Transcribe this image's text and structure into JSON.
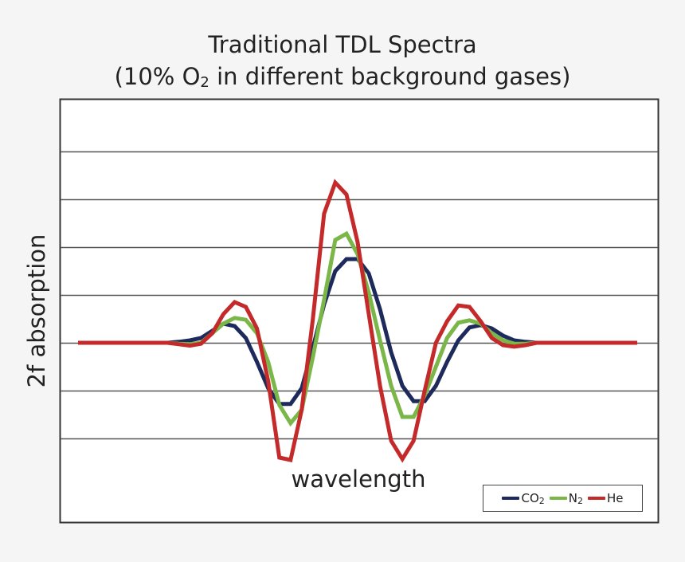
{
  "title": {
    "line1": "Traditional TDL Spectra",
    "line2_prefix": "(10% O",
    "line2_sub": "2",
    "line2_suffix": " in different background gases)"
  },
  "axes": {
    "xlabel": "wavelength",
    "ylabel": "2f absorption"
  },
  "legend": [
    {
      "label": "CO",
      "sub": "2",
      "color": "#1f2a5c"
    },
    {
      "label": "N",
      "sub": "2",
      "color": "#7ab648"
    },
    {
      "label": "He",
      "sub": "",
      "color": "#c42a2a"
    }
  ],
  "chart_data": {
    "type": "line",
    "title": "Traditional TDL Spectra (10% O2 in different background gases)",
    "xlabel": "wavelength",
    "ylabel": "2f absorption",
    "grid": "horizontal",
    "x_tick_labels": false,
    "y_tick_labels": false,
    "ylim": [
      -4,
      4.7
    ],
    "legend_position": "lower right, inside plot",
    "x": [
      0,
      1,
      2,
      3,
      4,
      5,
      6,
      7,
      8,
      9,
      10,
      11,
      12,
      13,
      14,
      15,
      16,
      17,
      18,
      19,
      20,
      21,
      22,
      23,
      24,
      25,
      26,
      27,
      28,
      29,
      30,
      31,
      32,
      33,
      34,
      35,
      36,
      37,
      38,
      39,
      40,
      41,
      42,
      43,
      44,
      45,
      46,
      47,
      48,
      49,
      50
    ],
    "series": [
      {
        "name": "CO2",
        "color": "#1f2a5c",
        "values": [
          0,
          0,
          0,
          0,
          0,
          0,
          0,
          0,
          0,
          0.02,
          0.05,
          0.1,
          0.25,
          0.4,
          0.35,
          0.1,
          -0.4,
          -0.95,
          -1.28,
          -1.28,
          -0.95,
          -0.1,
          0.8,
          1.5,
          1.75,
          1.75,
          1.45,
          0.7,
          -0.2,
          -0.9,
          -1.22,
          -1.22,
          -0.9,
          -0.4,
          0.05,
          0.32,
          0.37,
          0.3,
          0.15,
          0.05,
          0.02,
          0,
          0,
          0,
          0,
          0,
          0,
          0,
          0,
          0,
          0
        ]
      },
      {
        "name": "N2",
        "color": "#7ab648",
        "values": [
          0,
          0,
          0,
          0,
          0,
          0,
          0,
          0,
          0,
          -0.02,
          -0.03,
          0,
          0.2,
          0.4,
          0.52,
          0.48,
          0.2,
          -0.4,
          -1.3,
          -1.68,
          -1.4,
          -0.3,
          0.9,
          2.15,
          2.28,
          1.85,
          1.05,
          0.05,
          -0.9,
          -1.55,
          -1.55,
          -1.1,
          -0.5,
          0.1,
          0.42,
          0.47,
          0.4,
          0.2,
          0.05,
          -0.02,
          -0.02,
          0,
          0,
          0,
          0,
          0,
          0,
          0,
          0,
          0,
          0
        ]
      },
      {
        "name": "He",
        "color": "#c42a2a",
        "values": [
          0,
          0,
          0,
          0,
          0,
          0,
          0,
          0,
          0,
          -0.03,
          -0.06,
          -0.02,
          0.2,
          0.6,
          0.85,
          0.75,
          0.3,
          -0.8,
          -2.4,
          -2.45,
          -1.4,
          0.5,
          2.7,
          3.35,
          3.1,
          2.1,
          0.6,
          -0.9,
          -2.05,
          -2.43,
          -2.05,
          -1.0,
          0.0,
          0.45,
          0.78,
          0.75,
          0.45,
          0.1,
          -0.05,
          -0.08,
          -0.05,
          0,
          0,
          0,
          0,
          0,
          0,
          0,
          0,
          0,
          0
        ]
      }
    ]
  }
}
